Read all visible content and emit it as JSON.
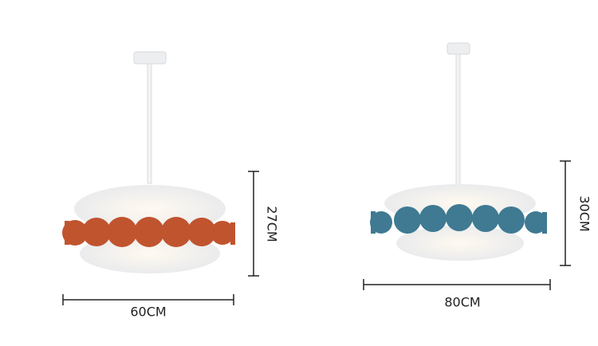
{
  "products": [
    {
      "width": "60CM",
      "height": "27CM"
    },
    {
      "width": "80CM",
      "height": "30CM"
    }
  ]
}
